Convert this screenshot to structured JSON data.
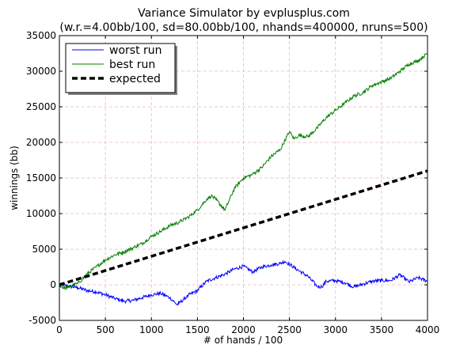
{
  "chart_data": {
    "type": "line",
    "title": "Variance Simulator by evplusplus.com",
    "subtitle": "(w.r.=4.00bb/100, sd=80.00bb/100, nhands=400000, nruns=500)",
    "xlabel": "# of hands / 100",
    "ylabel": "winnings (bb)",
    "xlim": [
      0,
      4000
    ],
    "ylim": [
      -5000,
      35000
    ],
    "xticks": [
      0,
      500,
      1000,
      1500,
      2000,
      2500,
      3000,
      3500,
      4000
    ],
    "yticks": [
      -5000,
      0,
      5000,
      10000,
      15000,
      20000,
      25000,
      30000,
      35000
    ],
    "grid": true,
    "legend_position": "top-left",
    "series": [
      {
        "name": "worst run",
        "color": "#0000ff",
        "style": "solid",
        "x": [
          0,
          100,
          200,
          300,
          400,
          500,
          600,
          700,
          800,
          900,
          1000,
          1100,
          1200,
          1280,
          1300,
          1400,
          1500,
          1600,
          1700,
          1800,
          1900,
          2000,
          2100,
          2200,
          2300,
          2400,
          2450,
          2500,
          2600,
          2700,
          2800,
          2850,
          2900,
          3000,
          3100,
          3200,
          3300,
          3400,
          3500,
          3600,
          3700,
          3800,
          3900,
          4000
        ],
        "y": [
          0,
          -200,
          -400,
          -800,
          -1000,
          -1400,
          -1900,
          -2300,
          -2200,
          -1800,
          -1400,
          -1200,
          -1800,
          -2800,
          -2600,
          -1500,
          -800,
          500,
          1000,
          1500,
          2200,
          2600,
          1800,
          2500,
          2800,
          3000,
          3300,
          2900,
          2000,
          1200,
          -200,
          -300,
          500,
          600,
          300,
          -300,
          100,
          500,
          600,
          600,
          1400,
          400,
          1000,
          500
        ]
      },
      {
        "name": "best run",
        "color": "#008000",
        "style": "solid",
        "x": [
          0,
          50,
          100,
          200,
          250,
          300,
          400,
          500,
          600,
          700,
          800,
          900,
          1000,
          1100,
          1200,
          1300,
          1400,
          1500,
          1600,
          1650,
          1700,
          1800,
          1900,
          2000,
          2100,
          2200,
          2300,
          2400,
          2500,
          2550,
          2600,
          2700,
          2800,
          2900,
          3000,
          3100,
          3200,
          3300,
          3400,
          3500,
          3600,
          3700,
          3800,
          3900,
          4000
        ],
        "y": [
          0,
          -500,
          -300,
          200,
          800,
          1500,
          2500,
          3500,
          4200,
          4600,
          5200,
          5800,
          6800,
          7500,
          8300,
          8800,
          9500,
          10500,
          12000,
          12500,
          12000,
          10500,
          13500,
          15000,
          15500,
          16500,
          18000,
          19000,
          21500,
          20500,
          21000,
          20800,
          22000,
          23500,
          24500,
          25500,
          26500,
          27000,
          28000,
          28500,
          29000,
          30000,
          31000,
          31500,
          32500
        ]
      },
      {
        "name": "expected",
        "color": "#000000",
        "style": "dashed",
        "x": [
          0,
          4000
        ],
        "y": [
          0,
          16000
        ]
      }
    ]
  }
}
